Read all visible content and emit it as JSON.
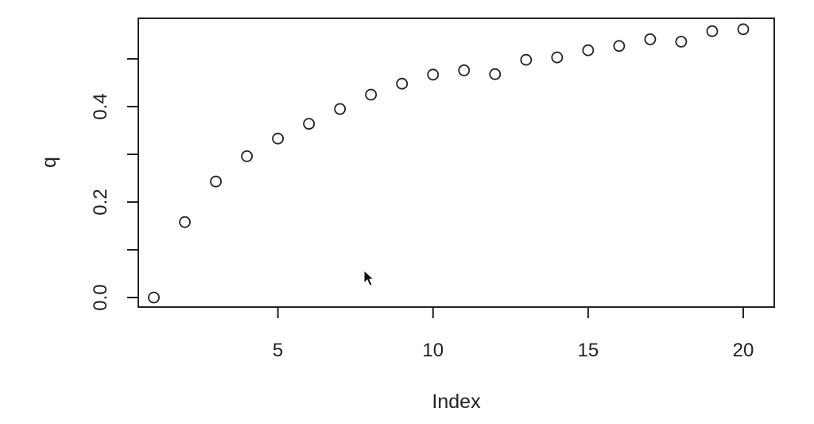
{
  "chart_data": {
    "type": "scatter",
    "title": "",
    "xlabel": "Index",
    "ylabel": "q",
    "x": [
      1,
      2,
      3,
      4,
      5,
      6,
      7,
      8,
      9,
      10,
      11,
      12,
      13,
      14,
      15,
      16,
      17,
      18,
      19,
      20
    ],
    "y": [
      0.0,
      0.158,
      0.243,
      0.296,
      0.333,
      0.364,
      0.395,
      0.425,
      0.448,
      0.467,
      0.476,
      0.468,
      0.498,
      0.503,
      0.518,
      0.527,
      0.541,
      0.536,
      0.558,
      0.562
    ],
    "xlim": [
      0.5,
      21
    ],
    "ylim": [
      -0.02,
      0.585
    ],
    "x_ticks": [
      5,
      10,
      15,
      20
    ],
    "x_tick_labels": [
      "5",
      "10",
      "15",
      "20"
    ],
    "y_ticks": [
      0.0,
      0.1,
      0.2,
      0.3,
      0.4,
      0.5
    ],
    "y_tick_labels": [
      "0.0",
      "",
      "0.2",
      "",
      "0.4",
      ""
    ],
    "marker": "open-circle",
    "grid": false,
    "colors": {
      "point_stroke": "#222222",
      "axis": "#222222",
      "background": "#ffffff"
    }
  }
}
